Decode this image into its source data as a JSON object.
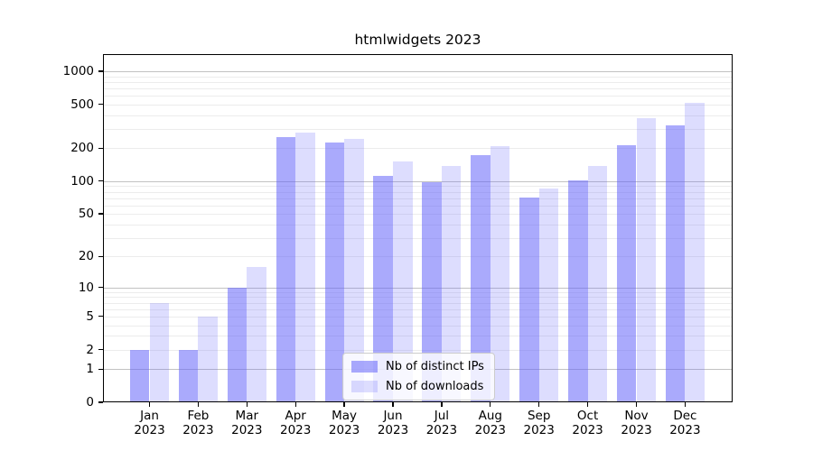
{
  "figure": {
    "background": "#ffffff"
  },
  "chart_data": {
    "type": "bar",
    "title": "htmlwidgets 2023",
    "categories": [
      "Jan 2023",
      "Feb 2023",
      "Mar 2023",
      "Apr 2023",
      "May 2023",
      "Jun 2023",
      "Jul 2023",
      "Aug 2023",
      "Sep 2023",
      "Oct 2023",
      "Nov 2023",
      "Dec 2023"
    ],
    "x_tick_line1": [
      "Jan",
      "Feb",
      "Mar",
      "Apr",
      "May",
      "Jun",
      "Jul",
      "Aug",
      "Sep",
      "Oct",
      "Nov",
      "Dec"
    ],
    "x_tick_line2": "2023",
    "series": [
      {
        "name": "Nb of distinct IPs",
        "color": "rgba(100,100,250,0.55)",
        "values": [
          2,
          2,
          10,
          252,
          225,
          111,
          98,
          174,
          71,
          101,
          212,
          320
        ]
      },
      {
        "name": "Nb of downloads",
        "color": "rgba(100,100,250,0.22)",
        "values": [
          7,
          5,
          16,
          277,
          244,
          151,
          138,
          209,
          85,
          139,
          375,
          517
        ]
      }
    ],
    "xlabel": "",
    "ylabel": "",
    "y_scale": "log1p",
    "y_ticks": [
      0,
      1,
      2,
      5,
      10,
      20,
      50,
      100,
      200,
      500,
      1000
    ],
    "y_grid_major": [
      1,
      10,
      100,
      1000
    ],
    "y_grid_minor": [
      2,
      3,
      4,
      5,
      6,
      7,
      8,
      9,
      20,
      30,
      40,
      50,
      60,
      70,
      80,
      90,
      200,
      300,
      400,
      500,
      600,
      700,
      800,
      900
    ],
    "ylim": [
      0,
      1430
    ],
    "grid": true,
    "legend_position": "lower center"
  },
  "colors": {
    "bar_distinct_ips": "rgba(100,100,250,0.55)",
    "bar_downloads": "rgba(100,100,250,0.22)",
    "grid_major": "#c2c2c2",
    "grid_minor": "#ececec",
    "axis_frame": "#000000",
    "tick": "#000000",
    "text": "#000000",
    "legend_border": "#cccccc",
    "legend_background": "rgba(255,255,255,0.8)"
  }
}
